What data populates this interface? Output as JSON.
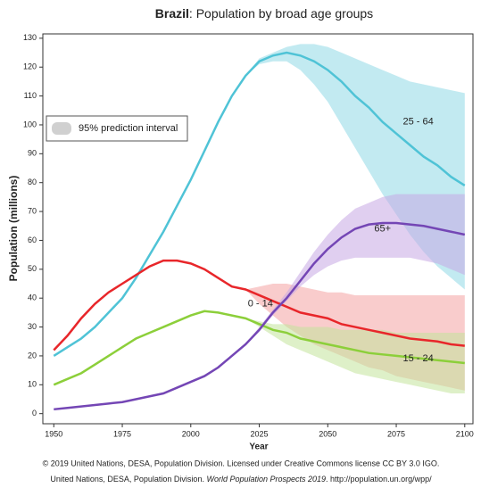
{
  "chart_data": {
    "type": "line",
    "title_country": "Brazil",
    "title_rest": ": Population by broad age groups",
    "ylabel": "Population (millions)",
    "xlabel": "Year",
    "legend_label": "95% prediction interval",
    "legend_color": "#d0d0d0",
    "source_line1": "© 2019 United Nations, DESA, Population Division. Licensed under Creative Commons license CC BY 3.0 IGO.",
    "source_line2": [
      "United Nations, DESA, Population Division. ",
      "World Population Prospects 2019",
      ". http://population.un.org/wpp/"
    ],
    "xlim": [
      1946,
      2103
    ],
    "ylim": [
      -3.5,
      131.5
    ],
    "xticks": [
      1950,
      1975,
      2000,
      2025,
      2050,
      2075,
      2100
    ],
    "yticks": [
      0,
      10,
      20,
      30,
      40,
      50,
      60,
      70,
      80,
      90,
      100,
      110,
      120,
      130
    ],
    "x": [
      1950,
      1955,
      1960,
      1965,
      1970,
      1975,
      1980,
      1985,
      1990,
      1995,
      2000,
      2005,
      2010,
      2015,
      2020,
      2025,
      2030,
      2035,
      2040,
      2045,
      2050,
      2055,
      2060,
      2065,
      2070,
      2075,
      2080,
      2085,
      2090,
      2095,
      2100
    ],
    "band_x": [
      2020,
      2025,
      2030,
      2035,
      2040,
      2045,
      2050,
      2055,
      2060,
      2065,
      2070,
      2075,
      2080,
      2085,
      2090,
      2095,
      2100
    ],
    "series": [
      {
        "name": "25 - 64",
        "color": "#4fc3d6",
        "band_color": "#8fd9e6",
        "values": [
          20,
          23,
          26,
          30,
          35,
          40,
          47,
          55,
          63,
          72,
          81,
          91,
          101,
          110,
          117,
          122,
          124,
          125,
          124,
          122,
          119,
          115,
          110,
          106,
          101,
          97,
          93,
          89,
          86,
          82,
          79
        ],
        "lower": [
          117,
          121,
          122,
          122,
          119,
          114,
          108,
          100,
          92,
          84,
          76,
          69,
          62,
          56,
          51,
          47,
          43
        ],
        "upper": [
          117,
          123,
          125,
          127,
          128,
          128,
          127,
          125,
          123,
          121,
          119,
          117,
          115,
          114,
          113,
          112,
          111
        ]
      },
      {
        "name": "0 - 14",
        "color": "#e8262a",
        "band_color": "#f4a3a3",
        "values": [
          22,
          27,
          33,
          38,
          42,
          45,
          48,
          51,
          53,
          53,
          52,
          50,
          47,
          44,
          43,
          41,
          39,
          37,
          35,
          34,
          33,
          31,
          30,
          29,
          28,
          27,
          26,
          25.5,
          25,
          24,
          23.5
        ],
        "lower": [
          43,
          38,
          34,
          30,
          27,
          24,
          22,
          20,
          18,
          16,
          15,
          13,
          12,
          11,
          10,
          9,
          8
        ],
        "upper": [
          43,
          44,
          45,
          45,
          44,
          43,
          42,
          42,
          41,
          41,
          41,
          41,
          41,
          41,
          41,
          41,
          41
        ]
      },
      {
        "name": "15 - 24",
        "color": "#8ccf3a",
        "band_color": "#c3e49b",
        "values": [
          10,
          12,
          14,
          17,
          20,
          23,
          26,
          28,
          30,
          32,
          34,
          35.5,
          35,
          34,
          33,
          31,
          29,
          28,
          26,
          25,
          24,
          23,
          22,
          21,
          20.5,
          20,
          19.5,
          19,
          18.5,
          18,
          17.5
        ],
        "lower": [
          33,
          30,
          27,
          24,
          22,
          20,
          18,
          16,
          14,
          13,
          12,
          11,
          10,
          9,
          8,
          7,
          7
        ],
        "upper": [
          33,
          32,
          31,
          31,
          30,
          30,
          30,
          29,
          29,
          29,
          29,
          28,
          28,
          28,
          28,
          28,
          28
        ]
      },
      {
        "name": "65+",
        "color": "#7446b5",
        "band_color": "#c6a7e3",
        "values": [
          1.5,
          2,
          2.5,
          3,
          3.5,
          4,
          5,
          6,
          7,
          9,
          11,
          13,
          16,
          20,
          24,
          29,
          35,
          40,
          46,
          52,
          57,
          61,
          64,
          65.5,
          66,
          66,
          65.5,
          65,
          64,
          63,
          62
        ],
        "lower": [
          24,
          29,
          34,
          39,
          44,
          48,
          51,
          53,
          54,
          54,
          54,
          54,
          54,
          53,
          52,
          50,
          48
        ],
        "upper": [
          24,
          30,
          36,
          42,
          49,
          56,
          62,
          67,
          71,
          73,
          75,
          76,
          76,
          76,
          76,
          76,
          76
        ]
      }
    ]
  }
}
